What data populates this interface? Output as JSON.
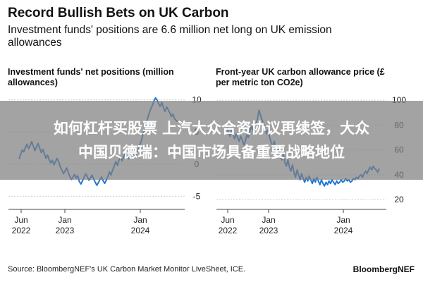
{
  "header": {
    "title": "Record Bullish Bets on UK Carbon",
    "subtitle": "Investment funds' positions are 6.6 million net long on UK emission allowances"
  },
  "chart_data": [
    {
      "type": "line",
      "title": "Investment funds' net positions (million allowances)",
      "x_tick_labels": [
        "Jun\n2022",
        "Jan\n2023",
        "Jan\n2024"
      ],
      "y_ticks": [
        10,
        5,
        0,
        -5
      ],
      "ylim": [
        -6.5,
        11.5
      ],
      "series": [
        {
          "name": "Net positions",
          "color": "#1f77d4",
          "x": [
            0,
            0.01,
            0.02,
            0.03,
            0.04,
            0.05,
            0.06,
            0.07,
            0.08,
            0.09,
            0.1,
            0.11,
            0.12,
            0.13,
            0.14,
            0.15,
            0.16,
            0.17,
            0.18,
            0.19,
            0.2,
            0.21,
            0.22,
            0.23,
            0.24,
            0.25,
            0.26,
            0.27,
            0.28,
            0.29,
            0.3,
            0.31,
            0.32,
            0.33,
            0.34,
            0.35,
            0.36,
            0.37,
            0.38,
            0.39,
            0.4,
            0.41,
            0.42,
            0.43,
            0.44,
            0.45,
            0.46,
            0.47,
            0.48,
            0.49,
            0.5,
            0.51,
            0.52,
            0.53,
            0.54,
            0.55,
            0.56,
            0.57,
            0.58,
            0.59,
            0.6,
            0.61,
            0.62,
            0.63,
            0.64,
            0.65,
            0.66,
            0.67,
            0.68,
            0.69,
            0.7,
            0.71,
            0.72,
            0.73,
            0.74,
            0.75,
            0.76,
            0.77,
            0.78,
            0.79,
            0.8,
            0.81,
            0.82,
            0.83,
            0.84,
            0.85,
            0.86,
            0.87,
            0.88,
            0.89,
            0.9,
            0.91,
            0.92,
            0.93,
            0.94,
            0.95,
            0.96,
            0.97,
            0.98,
            0.99,
            1.0
          ],
          "values": [
            0.8,
            1.5,
            2.2,
            1.9,
            2.6,
            3.1,
            2.4,
            2.9,
            3.5,
            2.8,
            2.1,
            2.7,
            3.2,
            2.5,
            1.8,
            2.3,
            1.6,
            0.9,
            1.4,
            0.7,
            0.2,
            0.6,
            -0.1,
            0.4,
            0.9,
            0.3,
            -0.4,
            -0.9,
            -1.5,
            -1.1,
            -0.6,
            -1.3,
            -1.9,
            -2.4,
            -2.0,
            -1.6,
            -2.2,
            -1.8,
            -2.7,
            -3.1,
            -2.6,
            -2.1,
            -1.5,
            -1.9,
            -2.5,
            -2.2,
            -1.7,
            -2.3,
            -2.8,
            -3.3,
            -2.9,
            -2.4,
            -2.0,
            -2.6,
            -3.0,
            -2.5,
            -1.9,
            -1.2,
            -1.7,
            -0.9,
            -0.3,
            0.4,
            -0.2,
            0.6,
            1.1,
            0.5,
            1.2,
            1.8,
            1.3,
            0.8,
            1.5,
            2.1,
            1.7,
            1.0,
            1.6,
            2.2,
            2.8,
            3.6,
            4.5,
            5.4,
            6.2,
            7.1,
            7.9,
            8.6,
            9.1,
            9.8,
            10.3,
            10.0,
            9.4,
            9.0,
            9.6,
            8.8,
            8.2,
            8.9,
            8.5,
            8.0,
            7.4,
            7.8,
            7.1,
            6.8,
            6.6
          ]
        }
      ]
    },
    {
      "type": "line",
      "title": "Front-year UK carbon allowance price (£ per metric ton CO2e)",
      "x_tick_labels": [
        "Jun\n2022",
        "Jan\n2023",
        "Jan\n2024"
      ],
      "y_ticks": [
        100,
        80,
        60,
        40,
        20
      ],
      "ylim": [
        15,
        108
      ],
      "series": [
        {
          "name": "Price",
          "color": "#1f77d4",
          "x": [
            0,
            0.01,
            0.02,
            0.03,
            0.04,
            0.05,
            0.06,
            0.07,
            0.08,
            0.09,
            0.1,
            0.11,
            0.12,
            0.13,
            0.14,
            0.15,
            0.16,
            0.17,
            0.18,
            0.19,
            0.2,
            0.21,
            0.22,
            0.23,
            0.24,
            0.25,
            0.26,
            0.27,
            0.28,
            0.29,
            0.3,
            0.31,
            0.32,
            0.33,
            0.34,
            0.35,
            0.36,
            0.37,
            0.38,
            0.39,
            0.4,
            0.41,
            0.42,
            0.43,
            0.44,
            0.45,
            0.46,
            0.47,
            0.48,
            0.49,
            0.5,
            0.51,
            0.52,
            0.53,
            0.54,
            0.55,
            0.56,
            0.57,
            0.58,
            0.59,
            0.6,
            0.61,
            0.62,
            0.63,
            0.64,
            0.65,
            0.66,
            0.67,
            0.68,
            0.69,
            0.7,
            0.71,
            0.72,
            0.73,
            0.74,
            0.75,
            0.76,
            0.77,
            0.78,
            0.79,
            0.8,
            0.81,
            0.82,
            0.83,
            0.84,
            0.85,
            0.86,
            0.87,
            0.88,
            0.89,
            0.9,
            0.91,
            0.92,
            0.93,
            0.94,
            0.95,
            0.96,
            0.97,
            0.98,
            0.99,
            1.0
          ],
          "values": [
            78,
            74,
            71,
            76,
            72,
            69,
            73,
            70,
            67,
            71,
            68,
            64,
            67,
            72,
            70,
            75,
            79,
            76,
            82,
            80,
            85,
            92,
            88,
            84,
            81,
            77,
            73,
            76,
            70,
            66,
            63,
            67,
            61,
            58,
            62,
            55,
            52,
            57,
            50,
            47,
            52,
            46,
            43,
            48,
            42,
            38,
            44,
            40,
            36,
            41,
            37,
            34,
            38,
            35,
            39,
            36,
            33,
            37,
            34,
            38,
            35,
            32,
            36,
            33,
            31,
            34,
            32,
            35,
            33,
            36,
            34,
            32,
            35,
            33,
            34,
            36,
            34,
            35,
            37,
            35,
            36,
            34,
            35,
            37,
            36,
            38,
            37,
            39,
            40,
            38,
            41,
            43,
            41,
            44,
            46,
            44,
            47,
            45,
            44,
            42,
            45
          ]
        }
      ]
    }
  ],
  "footer": {
    "source": "Source: BloombergNEF's UK Carbon Market Monitor LiveSheet, ICE.",
    "brand": "BloombergNEF"
  },
  "overlay": {
    "line1": "如何杠杆买股票 上汽大众合资协议再续签，大众",
    "line2": "中国贝德瑞：中国市场具备重要战略地位"
  }
}
